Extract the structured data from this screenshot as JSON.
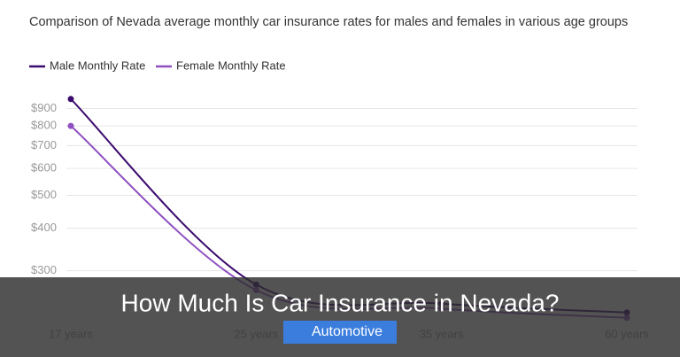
{
  "chart_data": {
    "type": "line",
    "title": "Comparison of Nevada average monthly car insurance rates for males and females in various age groups",
    "categories": [
      "17 years",
      "25 years",
      "35 years",
      "60 years"
    ],
    "series": [
      {
        "name": "Male Monthly Rate",
        "color": "#3b0a6e",
        "values": [
          960,
          273,
          240,
          226
        ]
      },
      {
        "name": "Female Monthly Rate",
        "color": "#8e4fc0",
        "values": [
          800,
          263,
          232,
          218
        ]
      }
    ],
    "ylim": [
      210,
      1000
    ],
    "yticks": [
      {
        "value": 300,
        "label": "$300"
      },
      {
        "value": 400,
        "label": "$400"
      },
      {
        "value": 500,
        "label": "$500"
      },
      {
        "value": 600,
        "label": "$600"
      },
      {
        "value": 700,
        "label": "$700"
      },
      {
        "value": 800,
        "label": "$800"
      },
      {
        "value": 900,
        "label": "$900"
      }
    ],
    "log_scale": true,
    "grid": true
  },
  "banner": {
    "title": "How Much Is Car Insurance in Nevada?",
    "tag": "Automotive"
  }
}
